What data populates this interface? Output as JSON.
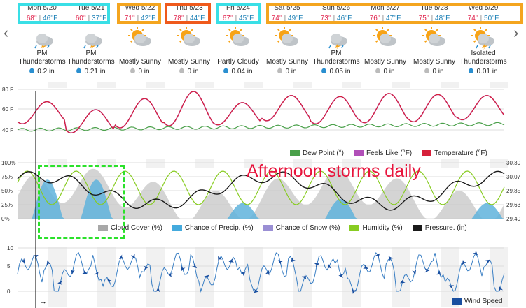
{
  "nav": {
    "prev": "‹",
    "next": "›"
  },
  "days": [
    {
      "date": "Mon 5/20",
      "hi": "68°",
      "lo": "46°F",
      "icon": "thunderstorm-icon",
      "cond": "PM Thunderstorms",
      "precip": "0.2 in",
      "wet": true
    },
    {
      "date": "Tue 5/21",
      "hi": "60°",
      "lo": "37°F",
      "icon": "thunderstorm-icon",
      "cond": "PM Thunderstorms",
      "precip": "0.21 in",
      "wet": true
    },
    {
      "date": "Wed 5/22",
      "hi": "71°",
      "lo": "42°F",
      "icon": "mostly-sunny-icon",
      "cond": "Mostly Sunny",
      "precip": "0 in",
      "wet": false
    },
    {
      "date": "Thu 5/23",
      "hi": "78°",
      "lo": "44°F",
      "icon": "mostly-sunny-icon",
      "cond": "Mostly Sunny",
      "precip": "0 in",
      "wet": false
    },
    {
      "date": "Fri 5/24",
      "hi": "67°",
      "lo": "45°F",
      "icon": "partly-cloudy-icon",
      "cond": "Partly Cloudy",
      "precip": "0.04 in",
      "wet": true
    },
    {
      "date": "Sat 5/25",
      "hi": "74°",
      "lo": "49°F",
      "icon": "mostly-sunny-icon",
      "cond": "Mostly Sunny",
      "precip": "0 in",
      "wet": false
    },
    {
      "date": "Sun 5/26",
      "hi": "73°",
      "lo": "46°F",
      "icon": "thunderstorm-icon",
      "cond": "PM Thunderstorms",
      "precip": "0.05 in",
      "wet": true
    },
    {
      "date": "Mon 5/27",
      "hi": "76°",
      "lo": "47°F",
      "icon": "mostly-sunny-icon",
      "cond": "Mostly Sunny",
      "precip": "0 in",
      "wet": false
    },
    {
      "date": "Tue 5/28",
      "hi": "75°",
      "lo": "48°F",
      "icon": "mostly-sunny-icon",
      "cond": "Mostly Sunny",
      "precip": "0 in",
      "wet": false
    },
    {
      "date": "Wed 5/29",
      "hi": "74°",
      "lo": "50°F",
      "icon": "isolated-thunderstorm-icon",
      "cond": "Isolated Thunderstorms",
      "precip": "0.01 in",
      "wet": true
    }
  ],
  "highlight_colors": {
    "cyan": "#39dfe6",
    "orange": "#f4a51f",
    "red": "#ef5a1c"
  },
  "temp_chart": {
    "yticks": [
      "80 F",
      "60 F",
      "40 F"
    ],
    "legend": [
      {
        "label": "Dew Point (°)",
        "color": "#4aa04a"
      },
      {
        "label": "Feels Like (°F)",
        "color": "#b14fb8"
      },
      {
        "label": "Temperature (°F)",
        "color": "#d6203a"
      }
    ]
  },
  "humid_chart": {
    "yticks_left": [
      "100%",
      "75%",
      "50%",
      "25%",
      "0%"
    ],
    "yticks_right": [
      "30.30",
      "30.07",
      "29.85",
      "29.63",
      "29.40"
    ],
    "legend": [
      {
        "label": "Cloud Cover (%)",
        "color": "#a8a8a8"
      },
      {
        "label": "Chance of Precip. (%)",
        "color": "#44aadd"
      },
      {
        "label": "Chance of Snow (%)",
        "color": "#9a8fd4"
      },
      {
        "label": "Humidity (%)",
        "color": "#88cc22"
      },
      {
        "label": "Pressure. (in)",
        "color": "#1a1a1a"
      }
    ]
  },
  "wind_chart": {
    "yticks": [
      "10",
      "5",
      "0"
    ],
    "legend": [
      {
        "label": "Wind Speed",
        "color": "#1a4fa0"
      }
    ],
    "arrow_label": "→"
  },
  "annotation": "Afternoon storms daily"
}
